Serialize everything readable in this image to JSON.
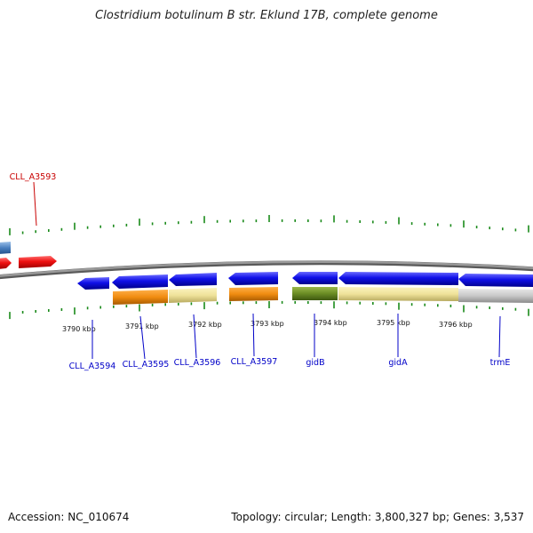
{
  "title": "Clostridium botulinum B str. Eklund 17B, complete genome",
  "footer": {
    "accession": "Accession: NC_010674",
    "topology": "Topology: circular; Length: 3,800,327 bp; Genes: 3,537"
  },
  "colors": {
    "backbone": "#808080",
    "cds_blue": "#0a0ae6",
    "cds_red": "#e60a0a",
    "cds_lightblue": "#4a80c0",
    "label_blue": "#0000c8",
    "label_red": "#c80000",
    "tick_green": "#1a8a1a"
  },
  "kbp_labels": [
    "3790 kbp",
    "3791 kbp",
    "3792 kbp",
    "3793 kbp",
    "3794 kbp",
    "3795 kbp",
    "3796 kbp"
  ],
  "genes": [
    {
      "label": "CLL_A3593",
      "color": "red"
    },
    {
      "label": "CLL_A3594",
      "color": "blue"
    },
    {
      "label": "CLL_A3595",
      "color": "blue"
    },
    {
      "label": "CLL_A3596",
      "color": "blue"
    },
    {
      "label": "CLL_A3597",
      "color": "blue"
    },
    {
      "label": "gidB",
      "color": "blue"
    },
    {
      "label": "gidA",
      "color": "blue"
    },
    {
      "label": "trmE",
      "color": "blue"
    }
  ]
}
